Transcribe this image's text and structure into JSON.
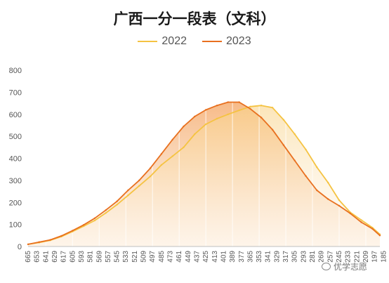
{
  "chart_data": {
    "type": "line",
    "title": "广西一分一段表（文科）",
    "xlabel": "",
    "ylabel": "",
    "ylim": [
      0,
      800
    ],
    "yticks": [
      0,
      100,
      200,
      300,
      400,
      500,
      600,
      700,
      800
    ],
    "xlim": [
      665,
      190
    ],
    "xticks": [
      665,
      653,
      641,
      629,
      617,
      605,
      593,
      581,
      569,
      557,
      545,
      533,
      521,
      509,
      497,
      485,
      473,
      461,
      449,
      437,
      425,
      413,
      401,
      389,
      377,
      365,
      353,
      341,
      329,
      317,
      305,
      293,
      281,
      269,
      257,
      245,
      233,
      221,
      209,
      197,
      185
    ],
    "grid": "vertical",
    "legend": "top-center",
    "series": [
      {
        "name": "2022",
        "color": "#F5C342",
        "x": [
          665,
          650,
          635,
          620,
          605,
          590,
          575,
          560,
          545,
          530,
          515,
          500,
          485,
          470,
          455,
          440,
          425,
          410,
          395,
          380,
          365,
          350,
          335,
          320,
          305,
          290,
          275,
          260,
          245,
          230,
          215,
          200,
          190
        ],
        "y": [
          10,
          18,
          28,
          45,
          68,
          92,
          118,
          152,
          190,
          232,
          275,
          318,
          370,
          410,
          450,
          510,
          555,
          580,
          600,
          618,
          635,
          640,
          630,
          575,
          510,
          440,
          360,
          290,
          210,
          155,
          120,
          85,
          55
        ]
      },
      {
        "name": "2023",
        "color": "#E8701F",
        "x": [
          665,
          650,
          635,
          620,
          605,
          590,
          575,
          560,
          545,
          530,
          515,
          500,
          485,
          470,
          455,
          440,
          425,
          410,
          395,
          380,
          365,
          350,
          335,
          320,
          305,
          290,
          275,
          260,
          245,
          230,
          215,
          200,
          190
        ],
        "y": [
          10,
          20,
          30,
          48,
          72,
          98,
          128,
          165,
          205,
          255,
          300,
          355,
          420,
          485,
          545,
          590,
          620,
          640,
          655,
          655,
          625,
          585,
          530,
          460,
          390,
          320,
          255,
          215,
          185,
          150,
          110,
          80,
          50
        ]
      }
    ]
  },
  "watermark": {
    "text": "优学志愿"
  }
}
